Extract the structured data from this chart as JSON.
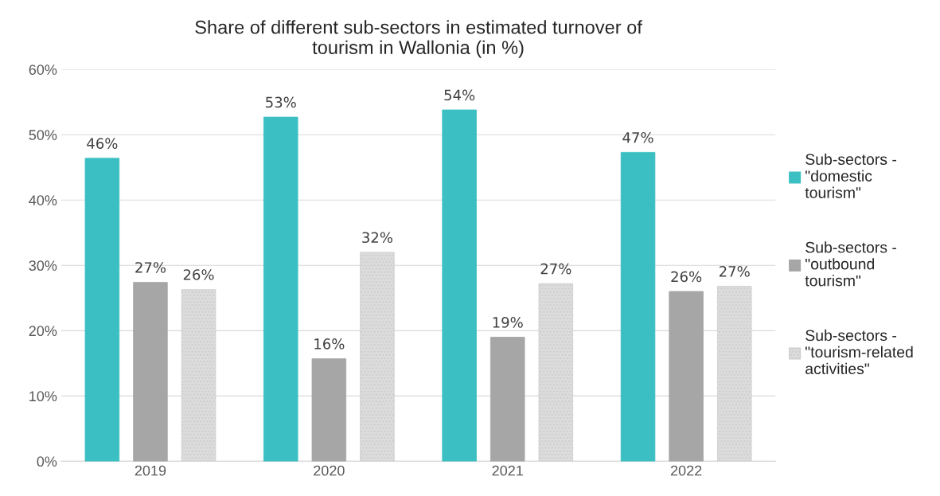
{
  "chart_data": {
    "type": "bar",
    "title": "Share of different sub-sectors in estimated turnover of\ntourism in Wallonia (in %)",
    "categories": [
      "2019",
      "2020",
      "2021",
      "2022"
    ],
    "series": [
      {
        "name": "Sub-sectors -\n\"domestic\ntourism\"",
        "color": "#3bbfc2",
        "values": [
          46.4,
          52.7,
          53.8,
          47.3
        ],
        "value_labels": [
          "46%",
          "53%",
          "54%",
          "47%"
        ]
      },
      {
        "name": "Sub-sectors -\n\"outbound\ntourism\"",
        "color": "#a6a6a6",
        "values": [
          27.4,
          15.7,
          19.0,
          26.0
        ],
        "value_labels": [
          "27%",
          "16%",
          "19%",
          "26%"
        ]
      },
      {
        "name": "Sub-sectors -\n\"tourism-related\nactivities\"",
        "color": "#dcdcdc",
        "values": [
          26.3,
          32.0,
          27.2,
          26.8
        ],
        "value_labels": [
          "26%",
          "32%",
          "27%",
          "27%"
        ]
      }
    ],
    "ylim": [
      0,
      60
    ],
    "yticks": [
      {
        "value": 0,
        "label": "0%"
      },
      {
        "value": 10,
        "label": "10%"
      },
      {
        "value": 20,
        "label": "20%"
      },
      {
        "value": 30,
        "label": "30%"
      },
      {
        "value": 40,
        "label": "40%"
      },
      {
        "value": 50,
        "label": "50%"
      },
      {
        "value": 60,
        "label": "60%"
      }
    ],
    "grid": "y",
    "legend": "right"
  }
}
